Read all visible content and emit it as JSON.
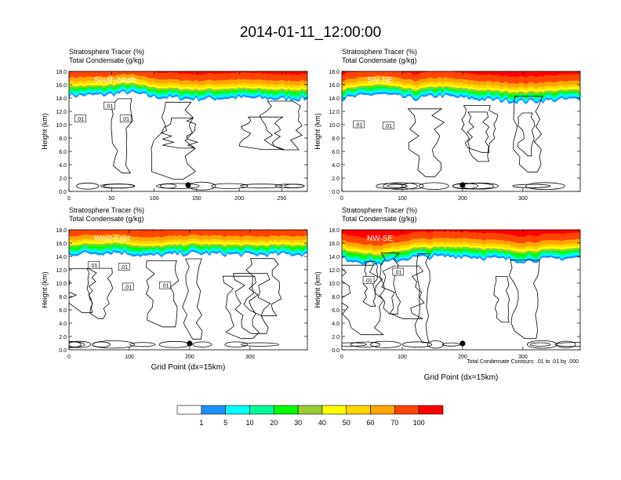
{
  "figure": {
    "title": "2014-01-11_12:00:00",
    "note": "Total Condensate Contours: .01 to .01 by .000"
  },
  "colorbar": {
    "colors": [
      "#ffffff",
      "#1e90ff",
      "#00ffff",
      "#00fa9a",
      "#00ff00",
      "#9acd32",
      "#ffff00",
      "#ffd700",
      "#ffa500",
      "#ff4500",
      "#ff0000"
    ],
    "labels": [
      "1",
      "5",
      "10",
      "20",
      "30",
      "40",
      "50",
      "60",
      "70",
      "100"
    ]
  },
  "chart_data": [
    {
      "type": "heatmap",
      "title": "South-North",
      "left_string_1": "Stratosphere Tracer   (%)",
      "left_string_2": "Total Condensate   (g/kg)",
      "xlabel": "",
      "ylabel": "Height (km)",
      "xlim": [
        0,
        280
      ],
      "ylim": [
        0,
        18
      ],
      "xticks": [
        0,
        50,
        100,
        150,
        200,
        250
      ],
      "yticks": [
        "0.0",
        "2.0",
        "4.0",
        "6.0",
        "8.0",
        "10.0",
        "12.0",
        "14.0",
        "16.0",
        "18.0"
      ],
      "tropopause_km": [
        [
          0,
          15.5
        ],
        [
          40,
          15.6
        ],
        [
          70,
          16.0
        ],
        [
          100,
          15.3
        ],
        [
          150,
          15.0
        ],
        [
          200,
          15.2
        ],
        [
          250,
          15.0
        ],
        [
          280,
          15.0
        ]
      ],
      "contour_labels": [
        ".01",
        ".01",
        ".01"
      ],
      "location_marker_x": 140
    },
    {
      "type": "heatmap",
      "title": "SW-NE",
      "left_string_1": "Stratosphere Tracer   (%)",
      "left_string_2": "Total Condensate   (g/kg)",
      "xlabel": "",
      "ylabel": "Height (km)",
      "xlim": [
        0,
        395
      ],
      "ylim": [
        0,
        18
      ],
      "xticks": [
        0,
        100,
        200,
        300
      ],
      "yticks": [
        "0.0",
        "2.0",
        "4.0",
        "6.0",
        "8.0",
        "10.0",
        "12.0",
        "14.0",
        "16.0",
        "18.0"
      ],
      "tropopause_km": [
        [
          0,
          15.0
        ],
        [
          60,
          15.8
        ],
        [
          120,
          15.0
        ],
        [
          160,
          15.5
        ],
        [
          220,
          15.0
        ],
        [
          300,
          14.6
        ],
        [
          395,
          15.0
        ]
      ],
      "contour_labels": [
        ".01",
        ".01"
      ],
      "location_marker_x": 200
    },
    {
      "type": "heatmap",
      "title": "West-East",
      "left_string_1": "Stratosphere Tracer   (%)",
      "left_string_2": "Total Condensate   (g/kg)",
      "xlabel": "Grid Point (dx=15km)",
      "ylabel": "Height (km)",
      "xlim": [
        0,
        395
      ],
      "ylim": [
        0,
        18
      ],
      "xticks": [
        0,
        100,
        200,
        300
      ],
      "yticks": [
        "0.0",
        "2.0",
        "4.0",
        "6.0",
        "8.0",
        "10.0",
        "12.0",
        "14.0",
        "16.0",
        "18.0"
      ],
      "tropopause_km": [
        [
          0,
          15.5
        ],
        [
          80,
          15.8
        ],
        [
          130,
          15.2
        ],
        [
          200,
          15.6
        ],
        [
          300,
          15.4
        ],
        [
          395,
          15.5
        ]
      ],
      "contour_labels": [
        ".01",
        ".01",
        ".01",
        ".01"
      ],
      "location_marker_x": 200
    },
    {
      "type": "heatmap",
      "title": "NW-SE",
      "left_string_1": "Stratosphere Tracer   (%)",
      "left_string_2": "Total Condensate   (g/kg)",
      "xlabel": "Grid Point (dx=15km)",
      "ylabel": "Height (km)",
      "xlim": [
        0,
        395
      ],
      "ylim": [
        0,
        18
      ],
      "xticks": [
        0,
        100,
        200,
        300
      ],
      "yticks": [
        "0.0",
        "2.0",
        "4.0",
        "6.0",
        "8.0",
        "10.0",
        "12.0",
        "14.0",
        "16.0",
        "18.0"
      ],
      "tropopause_km": [
        [
          0,
          14.8
        ],
        [
          60,
          14.0
        ],
        [
          120,
          15.0
        ],
        [
          200,
          15.2
        ],
        [
          300,
          14.5
        ],
        [
          395,
          15.0
        ]
      ],
      "contour_labels": [
        ".01",
        ".01"
      ],
      "location_marker_x": 200
    }
  ]
}
